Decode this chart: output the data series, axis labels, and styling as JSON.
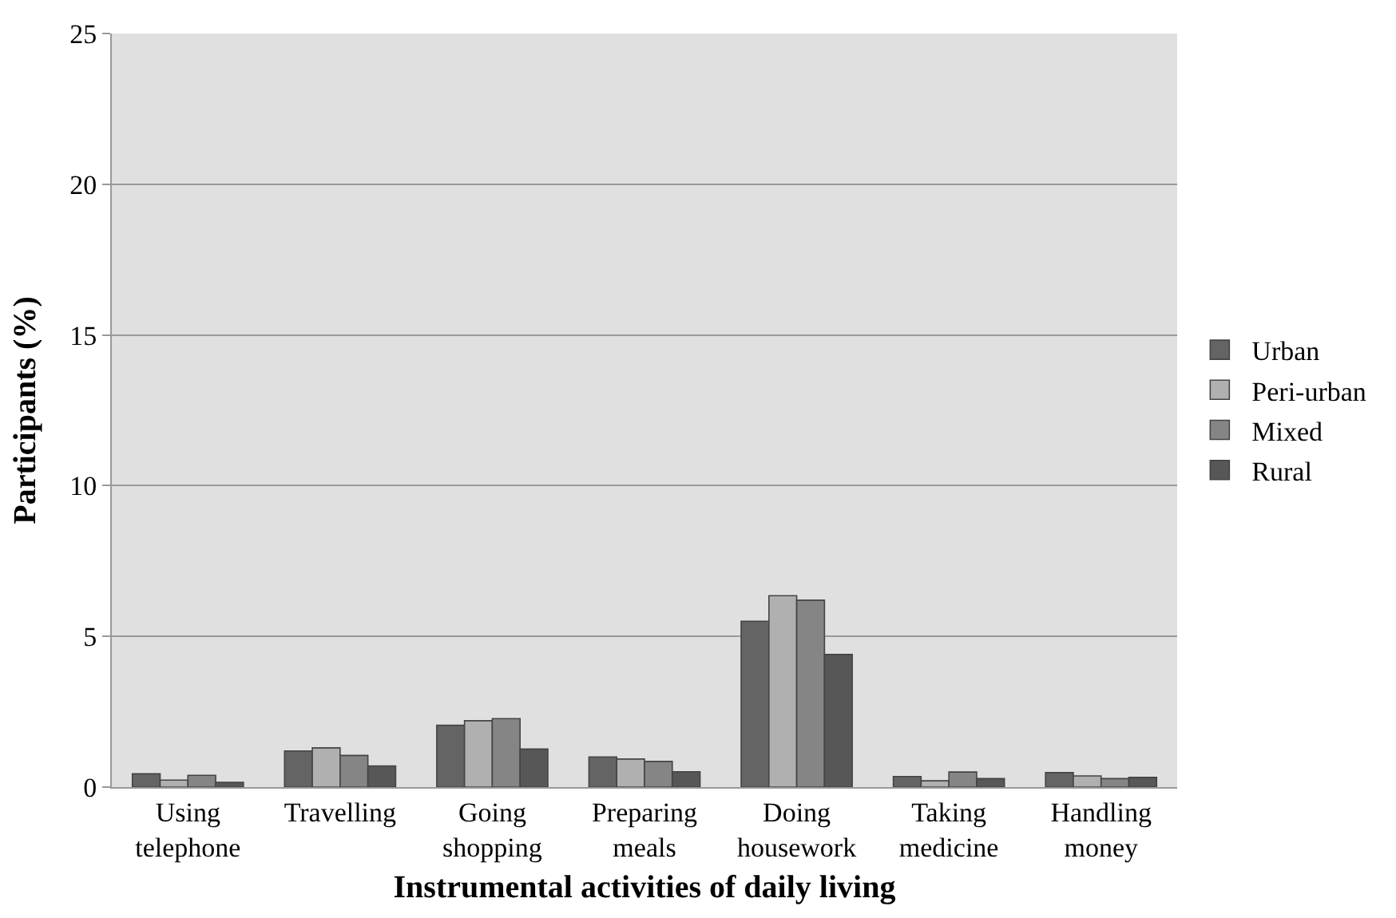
{
  "chart_data": {
    "type": "bar",
    "xlabel": "Instrumental activities of daily living",
    "ylabel": "Participants (%)",
    "categories": [
      "Using telephone",
      "Travelling",
      "Going shopping",
      "Preparing meals",
      "Doing housework",
      "Taking medicine",
      "Handling money"
    ],
    "series": [
      {
        "name": "Urban",
        "color": "#646464",
        "values": [
          0.44,
          1.2,
          2.05,
          1.0,
          5.5,
          0.35,
          0.48
        ]
      },
      {
        "name": "Peri-urban",
        "color": "#b0b0b0",
        "values": [
          0.23,
          1.3,
          2.2,
          0.93,
          6.35,
          0.21,
          0.37
        ]
      },
      {
        "name": "Mixed",
        "color": "#858585",
        "values": [
          0.39,
          1.05,
          2.27,
          0.85,
          6.2,
          0.5,
          0.28
        ]
      },
      {
        "name": "Rural",
        "color": "#575757",
        "values": [
          0.16,
          0.7,
          1.26,
          0.51,
          4.4,
          0.28,
          0.32
        ]
      }
    ],
    "ylim": [
      0,
      25
    ],
    "yticks": [
      0,
      5,
      10,
      15,
      20,
      25
    ],
    "grid": "y",
    "legend": "right"
  }
}
